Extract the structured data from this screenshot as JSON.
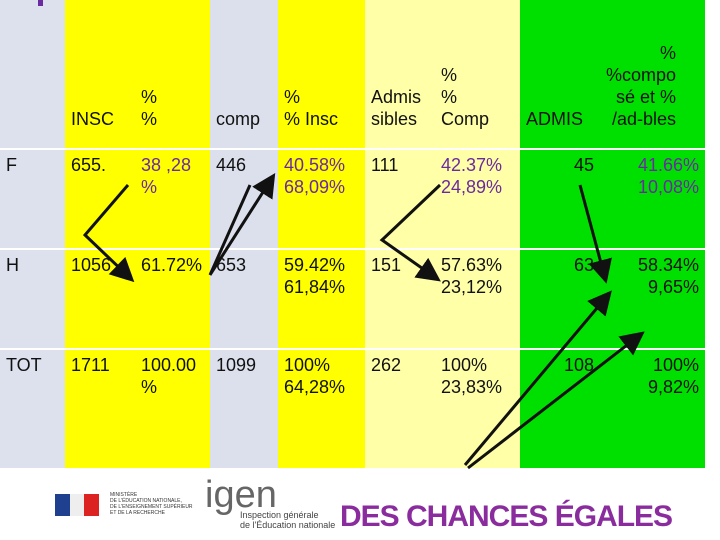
{
  "table": {
    "header": [
      "INSC",
      "%\n%",
      "comp",
      "%\n% Insc",
      "Admis\nsibles",
      "%\n%\nComp",
      "ADMIS",
      "%\n%compo\nsé et %\n/ad-bles"
    ],
    "rows": [
      [
        "F",
        "655.",
        "38 ,28\n%",
        "446",
        "40.58%\n68,09%",
        "111",
        "42.37%\n24,89%",
        "45",
        "41.66%\n10,08%"
      ],
      [
        "H",
        "1056",
        "61.72%",
        "653",
        "59.42%\n61,84%",
        "151",
        "57.63%\n23,12%",
        "63",
        "58.34%\n9,65%"
      ],
      [
        "TOT",
        "1711",
        "100.00\n%",
        "1099",
        "100%\n64,28%",
        "262",
        "100%\n23,83%",
        "108",
        "100%\n9,82%"
      ]
    ]
  },
  "footer": {
    "logo": "igen",
    "logo_subtitle": "Inspection générale\nde l'Éducation nationale",
    "ministry": "MINISTÈRE\nDE L'ÉDUCATION NATIONALE,\nDE L'ENSEIGNEMENT SUPÉRIEUR\nET DE LA RECHERCHE",
    "slogan": "DES CHANCES ÉGALES"
  }
}
